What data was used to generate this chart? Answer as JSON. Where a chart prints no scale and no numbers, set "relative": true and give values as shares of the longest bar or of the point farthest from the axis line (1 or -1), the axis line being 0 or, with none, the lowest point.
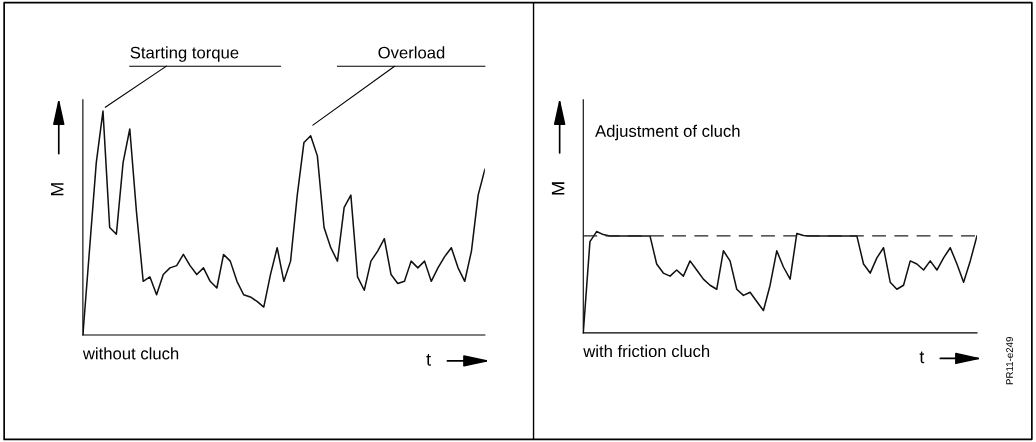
{
  "chart_data": [
    {
      "type": "line",
      "title": "without cluch",
      "xlabel": "t",
      "ylabel": "M",
      "relative": true,
      "tick_labels": false,
      "grid": false,
      "legend": false,
      "annotations": [
        "Starting torque",
        "Overload"
      ],
      "categories": [
        null,
        null,
        null,
        null,
        null,
        null,
        null,
        null,
        null,
        null,
        null,
        null,
        null,
        null,
        null,
        null,
        null,
        null,
        null,
        null,
        null,
        null,
        null,
        null,
        null,
        null,
        null,
        null,
        null,
        null,
        null,
        null,
        null,
        null,
        null,
        null,
        null,
        null,
        null,
        null,
        null,
        null,
        null,
        null,
        null,
        null,
        null,
        null,
        null,
        null,
        null,
        null,
        null,
        null,
        null,
        null,
        null,
        null,
        null,
        null,
        null
      ],
      "series": [
        {
          "color": "#111111",
          "values": [
            0,
            0.385,
            0.77,
            1.0,
            0.48,
            0.45,
            0.77,
            0.92,
            0.55,
            0.24,
            0.26,
            0.18,
            0.27,
            0.3,
            0.31,
            0.36,
            0.31,
            0.27,
            0.3,
            0.24,
            0.21,
            0.36,
            0.33,
            0.24,
            0.18,
            0.17,
            0.15,
            0.125,
            0.27,
            0.39,
            0.24,
            0.33,
            0.625,
            0.86,
            0.89,
            0.8,
            0.48,
            0.39,
            0.33,
            0.57,
            0.625,
            0.26,
            0.2,
            0.33,
            0.375,
            0.43,
            0.27,
            0.23,
            0.24,
            0.33,
            0.3,
            0.33,
            0.24,
            0.3,
            0.35,
            0.39,
            0.3,
            0.24,
            0.375,
            0.625,
            0.74
          ]
        }
      ]
    },
    {
      "type": "line",
      "title": "with friction cluch",
      "xlabel": "t",
      "ylabel": "M",
      "relative": true,
      "tick_labels": false,
      "grid": false,
      "legend": false,
      "annotations": [
        "Adjustment of cluch",
        "PR11-e249"
      ],
      "ref_lines": [
        {
          "axis": "y",
          "value": 0.957,
          "line_style": "dashed",
          "color": "#222222"
        }
      ],
      "categories": [
        null,
        null,
        null,
        null,
        null,
        null,
        null,
        null,
        null,
        null,
        null,
        null,
        null,
        null,
        null,
        null,
        null,
        null,
        null,
        null,
        null,
        null,
        null,
        null,
        null,
        null,
        null,
        null,
        null,
        null,
        null,
        null,
        null,
        null,
        null,
        null,
        null,
        null,
        null,
        null,
        null,
        null,
        null,
        null,
        null,
        null,
        null,
        null,
        null,
        null,
        null,
        null,
        null,
        null,
        null,
        null,
        null,
        null,
        null,
        null
      ],
      "series": [
        {
          "color": "#111111",
          "values": [
            0,
            0.9,
            1.0,
            0.97,
            0.957,
            0.957,
            0.957,
            0.957,
            0.957,
            0.957,
            0.957,
            0.68,
            0.59,
            0.56,
            0.62,
            0.56,
            0.71,
            0.62,
            0.53,
            0.47,
            0.43,
            0.81,
            0.71,
            0.43,
            0.37,
            0.4,
            0.31,
            0.22,
            0.47,
            0.81,
            0.65,
            0.53,
            0.98,
            0.96,
            0.957,
            0.957,
            0.957,
            0.957,
            0.957,
            0.957,
            0.957,
            0.957,
            0.68,
            0.59,
            0.74,
            0.84,
            0.5,
            0.43,
            0.47,
            0.71,
            0.68,
            0.62,
            0.71,
            0.62,
            0.74,
            0.84,
            0.68,
            0.5,
            0.71,
            0.957
          ]
        }
      ]
    }
  ]
}
